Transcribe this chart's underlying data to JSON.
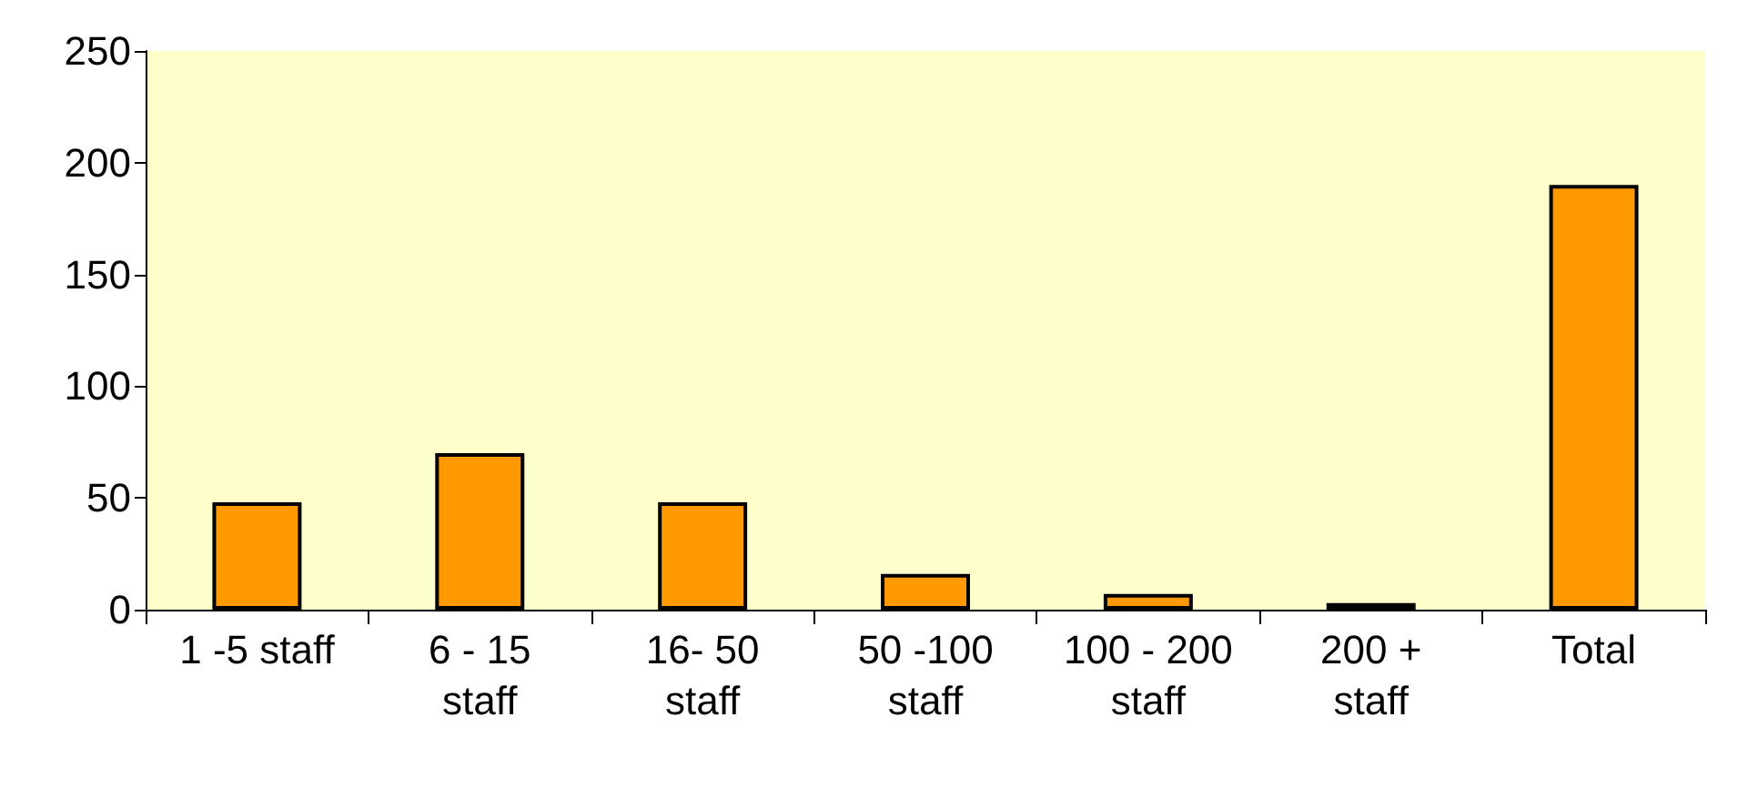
{
  "chart_data": {
    "type": "bar",
    "categories": [
      "1 -5 staff",
      "6 - 15\nstaff",
      "16- 50\nstaff",
      "50 -100\nstaff",
      "100 - 200\nstaff",
      "200 +\nstaff",
      "Total"
    ],
    "values": [
      48,
      70,
      48,
      16,
      7,
      3,
      190
    ],
    "color": "#ff9900",
    "ylim": [
      0,
      250
    ],
    "yticks": [
      0,
      50,
      100,
      150,
      200,
      250
    ],
    "grid": false
  }
}
